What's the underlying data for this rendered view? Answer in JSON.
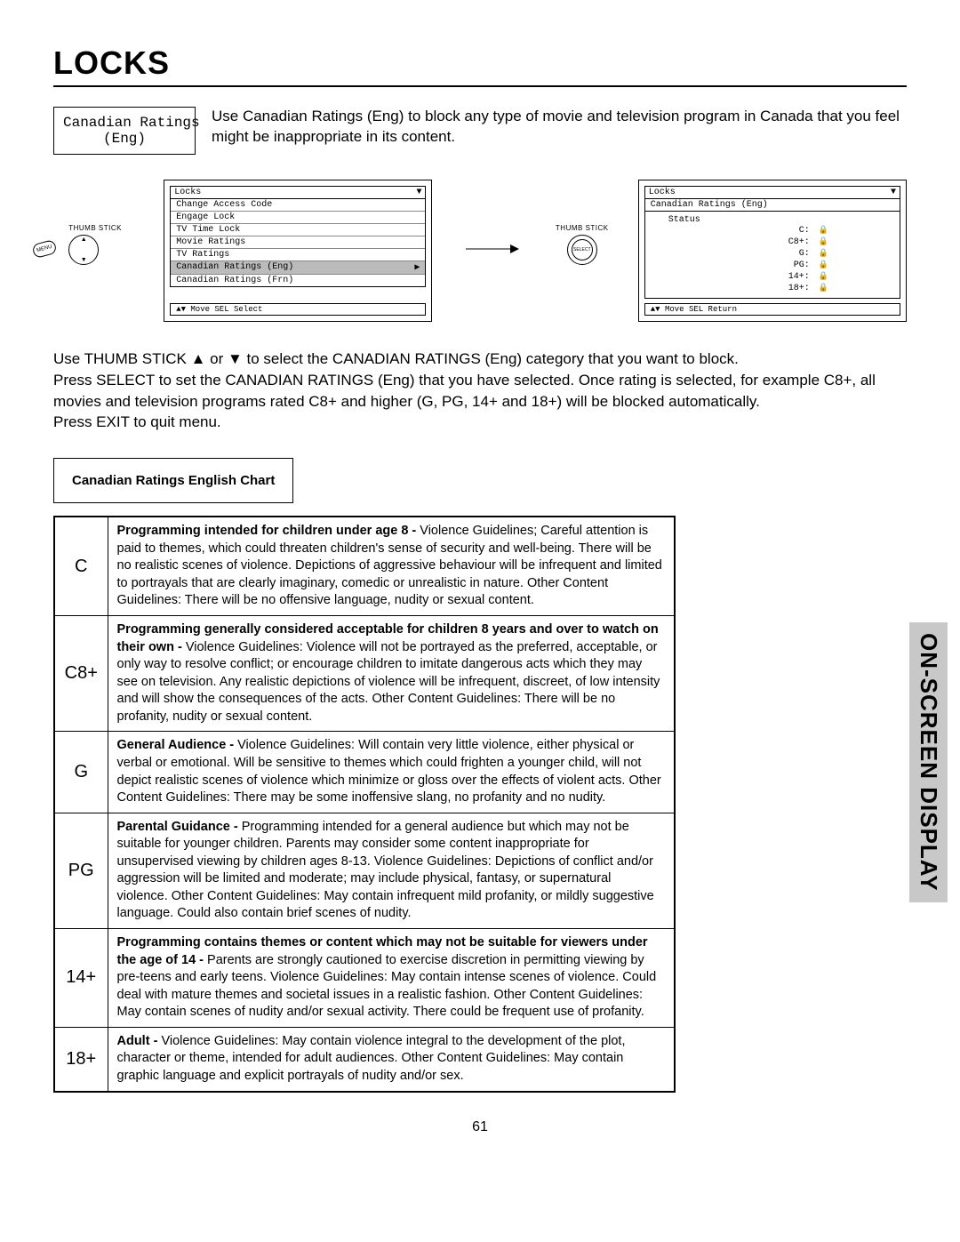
{
  "page": {
    "title": "LOCKS",
    "sideTab": "ON-SCREEN DISPLAY",
    "pageNumber": "61"
  },
  "intro": {
    "boxLabel": "Canadian Ratings\n(Eng)",
    "text": "Use Canadian Ratings (Eng) to block any type of movie and television program in Canada that you feel might be inappropriate in its content."
  },
  "controls": {
    "thumbLabel": "THUMB\nSTICK",
    "menuBadge": "MENU",
    "selectLabel": "SELECT"
  },
  "osd1": {
    "header": "Locks",
    "items": [
      "Change Access Code",
      "Engage Lock",
      "TV Time Lock",
      "Movie Ratings",
      "TV Ratings",
      "Canadian Ratings (Eng)",
      "Canadian Ratings (Frn)"
    ],
    "highlightIndex": 5,
    "footer": "▲▼ Move  SEL Select"
  },
  "osd2": {
    "header": "Locks",
    "subheader": "Canadian Ratings (Eng)",
    "statusLabel": "Status",
    "rows": [
      {
        "label": "C:",
        "locked": true
      },
      {
        "label": "C8+:",
        "locked": true
      },
      {
        "label": "G:",
        "locked": true
      },
      {
        "label": "PG:",
        "locked": true
      },
      {
        "label": "14+:",
        "locked": true
      },
      {
        "label": "18+:",
        "locked": true
      }
    ],
    "footer": "▲▼ Move  SEL Return"
  },
  "instructions": {
    "line1": "Use THUMB STICK ▲ or ▼ to select the CANADIAN RATINGS (Eng) category that you want to block.",
    "line2": "Press SELECT to set the CANADIAN RATINGS (Eng) that you have selected. Once rating is selected, for example C8+, all movies and television programs rated C8+ and higher (G, PG, 14+ and 18+) will be blocked automatically.",
    "line3": "Press EXIT to quit menu."
  },
  "chart": {
    "title": "Canadian Ratings English Chart",
    "rows": [
      {
        "code": "C",
        "lead": "Programming intended for children under age 8 - ",
        "body": "Violence Guidelines; Careful attention is paid to themes, which could threaten children's sense of security and well-being.  There will be no realistic scenes of violence.  Depictions of aggressive behaviour will be infrequent and limited to portrayals that are clearly imaginary, comedic or unrealistic in nature.  Other Content Guidelines:  There will be no offensive language, nudity or sexual content."
      },
      {
        "code": "C8+",
        "lead": "Programming generally considered acceptable for children 8 years and over to watch on their own - ",
        "body": "Violence Guidelines: Violence will not be portrayed as the preferred, acceptable, or only way to resolve conflict; or encourage children to imitate dangerous acts which they may see on television.  Any realistic depictions of violence will be infrequent, discreet, of low intensity and will show the consequences of the acts.  Other Content Guidelines: There will be no profanity, nudity or sexual content."
      },
      {
        "code": "G",
        "lead": "General Audience - ",
        "body": "Violence Guidelines: Will contain very little violence, either physical or verbal or emotional.  Will be sensitive to themes which could frighten a younger child, will not depict realistic scenes of violence which minimize or gloss over the effects of violent acts.  Other Content Guidelines: There may be some inoffensive slang, no profanity and no nudity."
      },
      {
        "code": "PG",
        "lead": "Parental Guidance - ",
        "body": "Programming intended for a general audience but which may not be suitable for younger children.  Parents may consider some content inappropriate for unsupervised viewing by children ages 8-13.  Violence Guidelines: Depictions of conflict and/or aggression will be limited and moderate; may include physical, fantasy, or supernatural violence.  Other Content Guidelines:  May contain infrequent mild profanity, or mildly suggestive language.  Could also contain brief scenes of nudity."
      },
      {
        "code": "14+",
        "lead": "Programming contains themes or content which may not be suitable for viewers under the age of 14 - ",
        "body": "Parents are strongly cautioned to exercise discretion in permitting viewing by pre-teens and early teens.  Violence Guidelines: May contain intense scenes of violence.  Could deal with mature themes and societal issues in a realistic fashion.  Other Content Guidelines: May contain scenes of nudity and/or sexual activity.  There could be frequent use of profanity."
      },
      {
        "code": "18+",
        "lead": "Adult - ",
        "body": "Violence Guidelines: May contain violence integral to the development of the plot, character or theme, intended for adult audiences.  Other Content Guidelines: May contain graphic language and explicit portrayals of nudity and/or sex."
      }
    ]
  }
}
